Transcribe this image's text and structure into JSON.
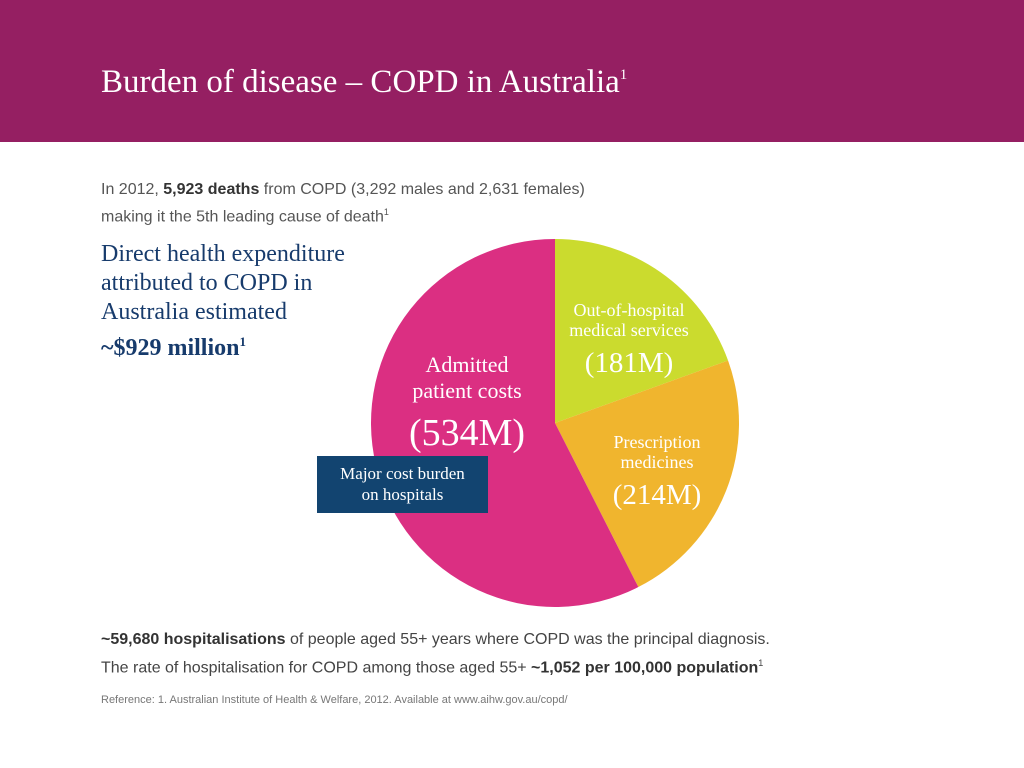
{
  "header": {
    "title": "Burden of disease – COPD in Australia",
    "title_sup": "1",
    "color": "#951f62"
  },
  "intro": {
    "line1_pre": "In 2012, ",
    "line1_bold": "5,923 deaths",
    "line1_post": " from COPD (3,292 males and 2,631 females)",
    "line2": "making it the 5th leading cause of death",
    "line2_sup": "1"
  },
  "expenditure": {
    "line1": "Direct health expenditure",
    "line2": "attributed to COPD in",
    "line3": "Australia estimated",
    "amount": "~$929 million",
    "amount_sup": "1"
  },
  "callout": {
    "line1": "Major cost burden",
    "line2": "on hospitals"
  },
  "chart_data": {
    "type": "pie",
    "slices": [
      {
        "label_lines": [
          "Out-of-hospital",
          "medical services"
        ],
        "value_label": "(181M)",
        "value": 181,
        "color": "#cbdb2e"
      },
      {
        "label_lines": [
          "Prescription",
          "medicines"
        ],
        "value_label": "(214M)",
        "value": 214,
        "color": "#f0b52e"
      },
      {
        "label_lines": [
          "Admitted",
          "patient costs"
        ],
        "value_label": "(534M)",
        "value": 534,
        "color": "#db2f82"
      }
    ]
  },
  "bottom": {
    "line1_bold": "~59,680 hospitalisations",
    "line1_post": " of people aged 55+ years where COPD was the principal diagnosis.",
    "line2_pre": "The rate of hospitalisation for COPD among those aged 55+ ",
    "line2_bold": "~1,052 per 100,000 population",
    "line2_sup": "1"
  },
  "reference": "Reference: 1. Australian Institute of Health & Welfare, 2012. Available at www.aihw.gov.au/copd/"
}
